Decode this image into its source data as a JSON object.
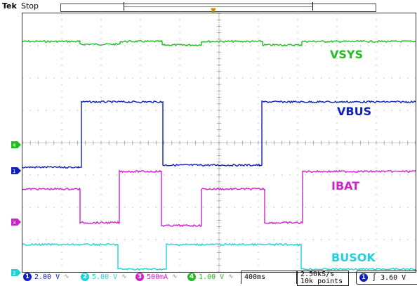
{
  "header": {
    "brand": "Tek",
    "state": "Stop"
  },
  "colors": {
    "ch1": "#1020b8",
    "ch2": "#22d0dc",
    "ch3": "#cc22cc",
    "ch4": "#22bb22",
    "grid": "#9a9a9a",
    "trigger": "#d88a00"
  },
  "labels": {
    "vsys": "VSYS",
    "vbus": "VBUS",
    "ibat": "IBAT",
    "busok": "BUSOK"
  },
  "channels": [
    {
      "num": "1",
      "value": "2.00 V",
      "bw_icon": "bandwidth-limit-icon"
    },
    {
      "num": "2",
      "value": "5.00 V",
      "bw_icon": "bandwidth-limit-icon"
    },
    {
      "num": "3",
      "value": "500mA",
      "bw_icon": "bandwidth-limit-icon"
    },
    {
      "num": "4",
      "value": "1.00 V",
      "bw_icon": "bandwidth-limit-icon"
    }
  ],
  "timebase": "400ms",
  "sample": {
    "rate": "2.50kS/s",
    "points": "10k points"
  },
  "trigger": {
    "channel": "1",
    "slope_icon": "rising-edge-icon",
    "level": "3.60 V"
  },
  "markers": {
    "ch1": "1",
    "ch2": "2",
    "ch3": "3",
    "ch4": "4"
  }
}
